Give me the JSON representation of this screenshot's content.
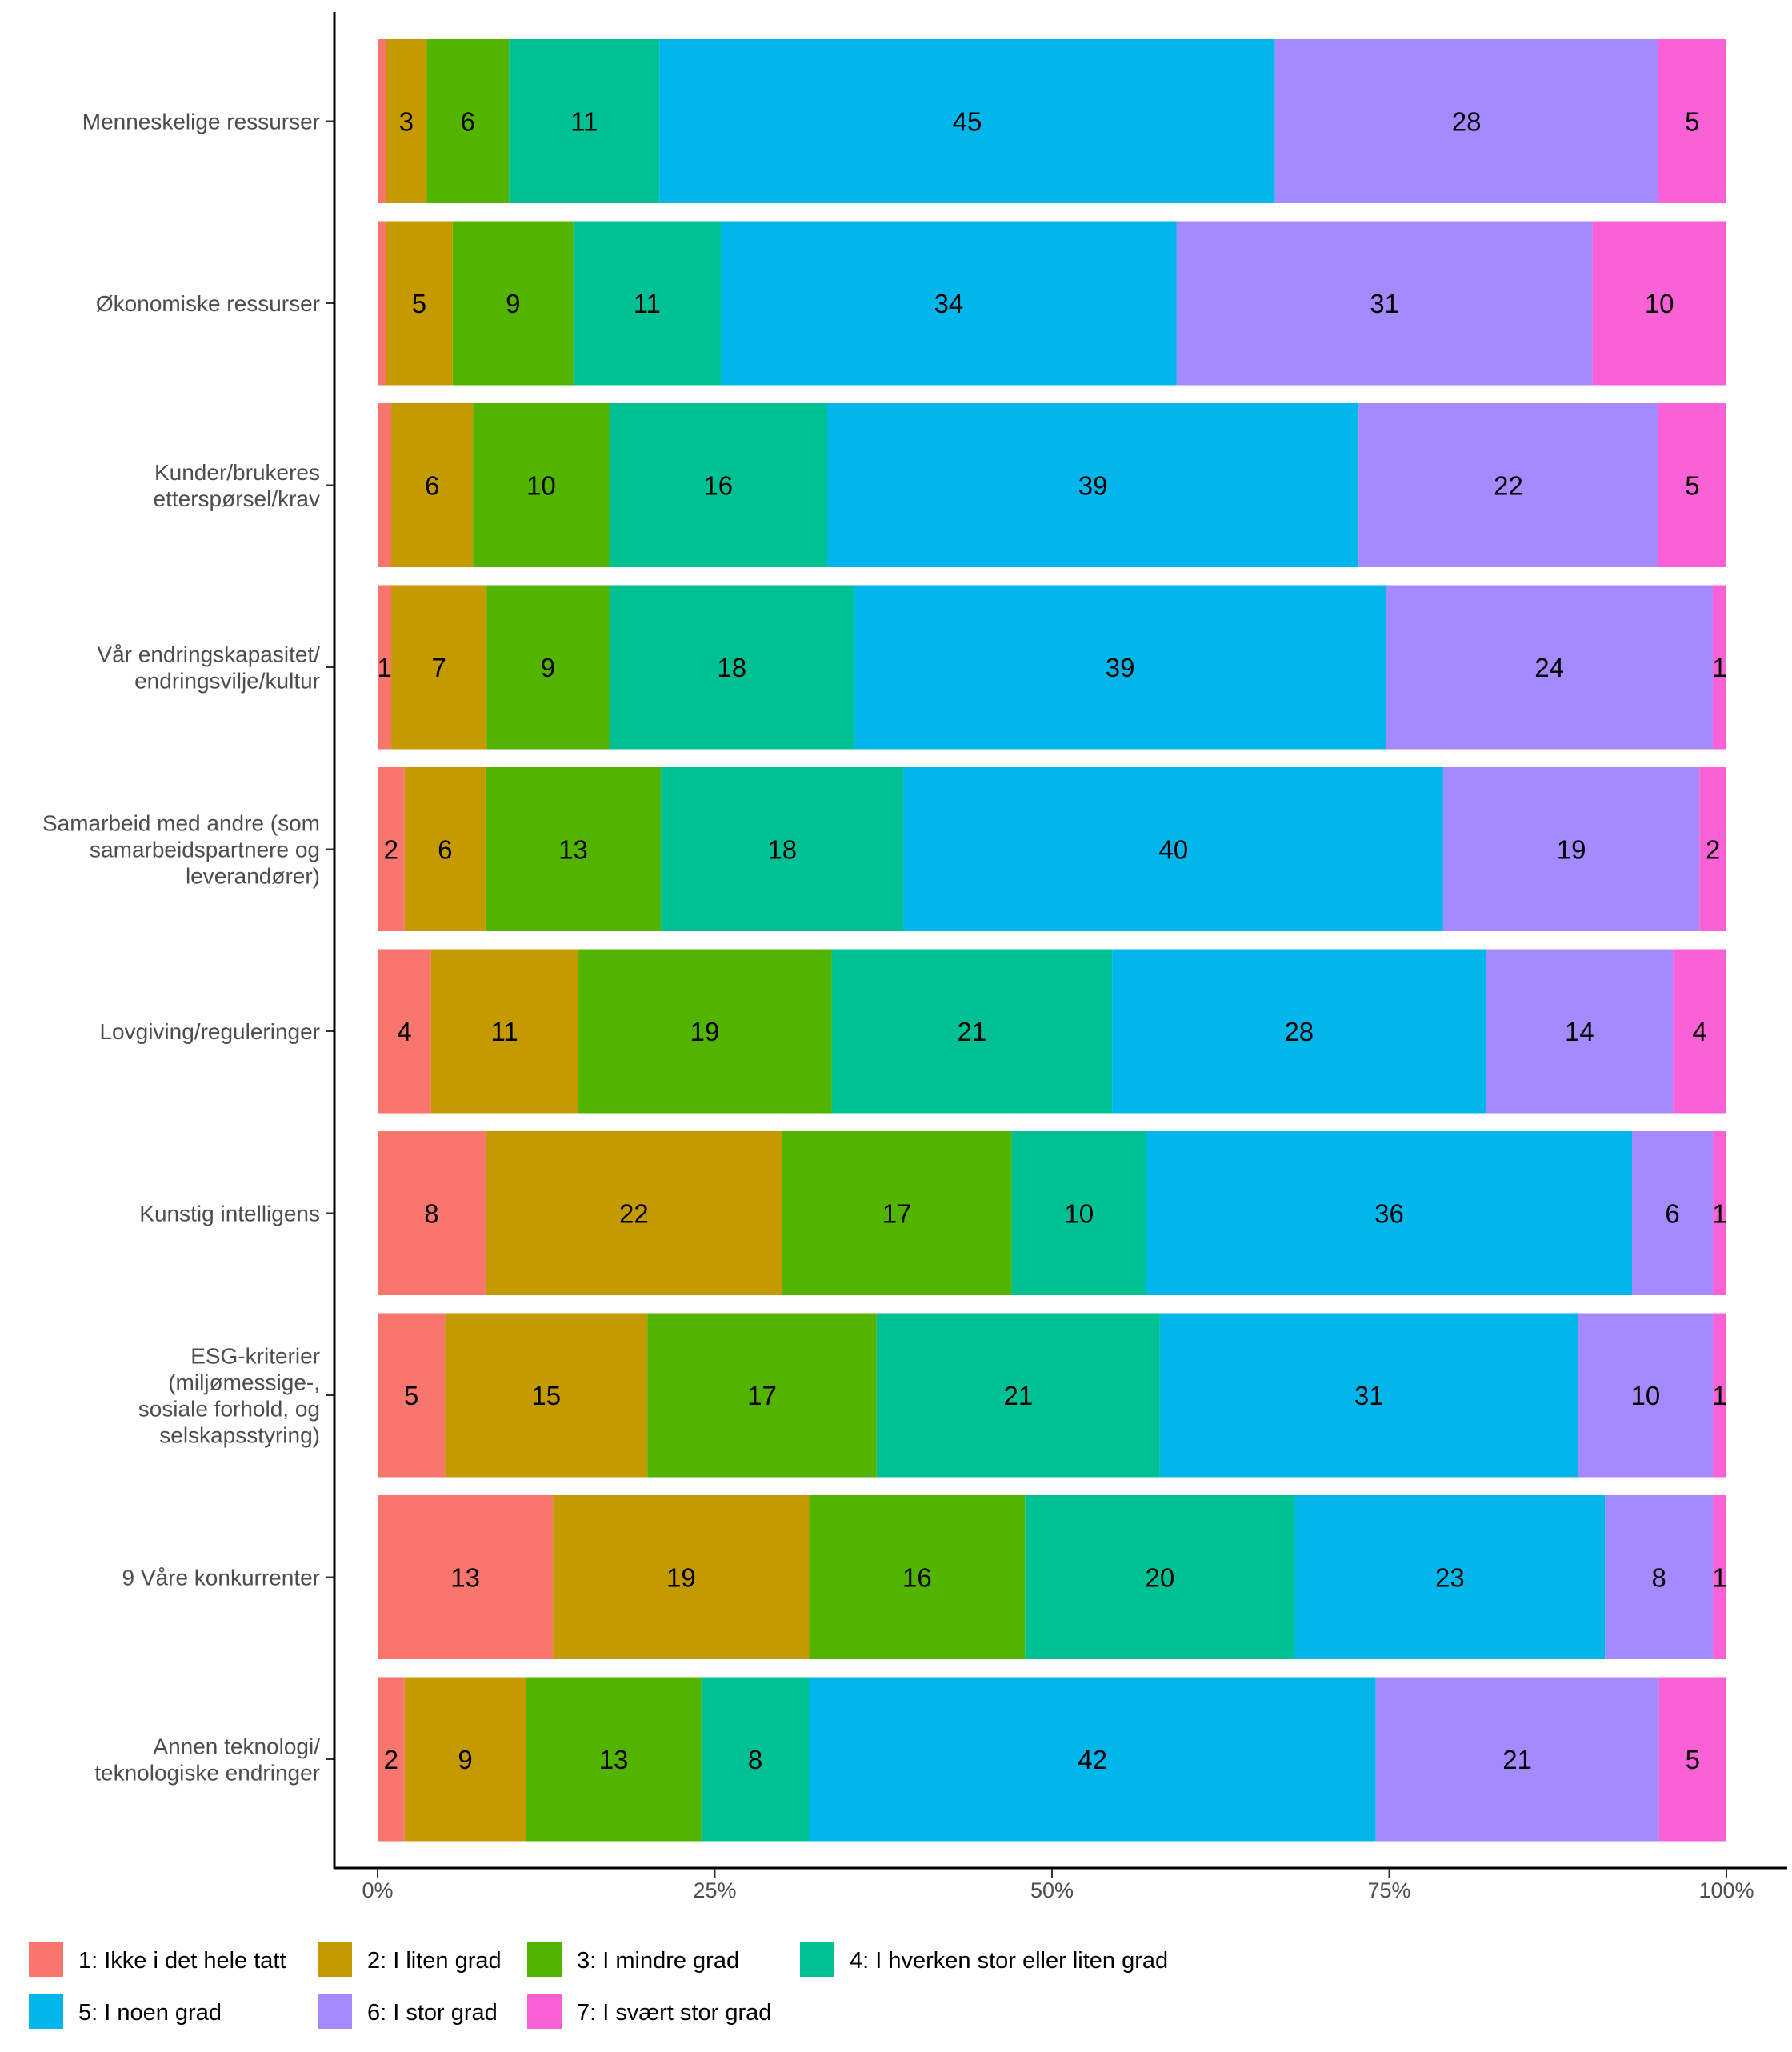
{
  "chart_data": {
    "type": "bar",
    "orientation": "horizontal",
    "stacked": "percent",
    "categories": [
      [
        "Menneskelige ressurser"
      ],
      [
        "Økonomiske ressurser"
      ],
      [
        "Kunder/brukeres",
        "etterspørsel/krav"
      ],
      [
        "Vår endringskapasitet/",
        "endringsvilje/kultur"
      ],
      [
        "Samarbeid med andre (som",
        "samarbeidspartnere og",
        "leverandører)"
      ],
      [
        "Lovgiving/reguleringer"
      ],
      [
        "Kunstig intelligens"
      ],
      [
        "ESG-kriterier",
        "(miljømessige-,",
        "sosiale forhold, og",
        "selskapsstyring)"
      ],
      [
        "9 Våre konkurrenter"
      ],
      [
        "Annen teknologi/",
        "teknologiske endringer"
      ]
    ],
    "series": [
      {
        "name": "1: Ikke i det hele tatt",
        "color": "#F8766D",
        "values": [
          0.6,
          0.6,
          1,
          1,
          2,
          4,
          8,
          5,
          13,
          2
        ],
        "labels": [
          "",
          "",
          "",
          "1",
          "2",
          "4",
          "8",
          "5",
          "13",
          "2"
        ]
      },
      {
        "name": "2: I liten grad",
        "color": "#C49A00",
        "values": [
          3,
          5,
          6,
          7,
          6,
          11,
          22,
          15,
          19,
          9
        ],
        "labels": [
          "3",
          "5",
          "6",
          "7",
          "6",
          "11",
          "22",
          "15",
          "19",
          "9"
        ]
      },
      {
        "name": "3: I mindre grad",
        "color": "#53B400",
        "values": [
          6,
          9,
          10,
          9,
          13,
          19,
          17,
          17,
          16,
          13
        ],
        "labels": [
          "6",
          "9",
          "10",
          "9",
          "13",
          "19",
          "17",
          "17",
          "16",
          "13"
        ]
      },
      {
        "name": "4: I hverken stor eller liten grad",
        "color": "#00C094",
        "values": [
          11,
          11,
          16,
          18,
          18,
          21,
          10,
          21,
          20,
          8
        ],
        "labels": [
          "11",
          "11",
          "16",
          "18",
          "18",
          "21",
          "10",
          "21",
          "20",
          "8"
        ]
      },
      {
        "name": "5: I noen grad",
        "color": "#00B6EB",
        "values": [
          45,
          34,
          39,
          39,
          40,
          28,
          36,
          31,
          23,
          42
        ],
        "labels": [
          "45",
          "34",
          "39",
          "39",
          "40",
          "28",
          "36",
          "31",
          "23",
          "42"
        ]
      },
      {
        "name": "6: I stor grad",
        "color": "#A58AFF",
        "values": [
          28,
          31,
          22,
          24,
          19,
          14,
          6,
          10,
          8,
          21
        ],
        "labels": [
          "28",
          "31",
          "22",
          "24",
          "19",
          "14",
          "6",
          "10",
          "8",
          "21"
        ]
      },
      {
        "name": "7: I svært stor grad",
        "color": "#FB61D7",
        "values": [
          5,
          10,
          5,
          1,
          2,
          4,
          1,
          1,
          1,
          5
        ],
        "labels": [
          "5",
          "10",
          "5",
          "1",
          "2",
          "4",
          "1",
          "1",
          "1",
          "5"
        ]
      }
    ],
    "xticks": [
      "0%",
      "25%",
      "50%",
      "75%",
      "100%"
    ],
    "xlim": [
      0,
      100
    ],
    "grid": false,
    "legend_position": "bottom"
  }
}
